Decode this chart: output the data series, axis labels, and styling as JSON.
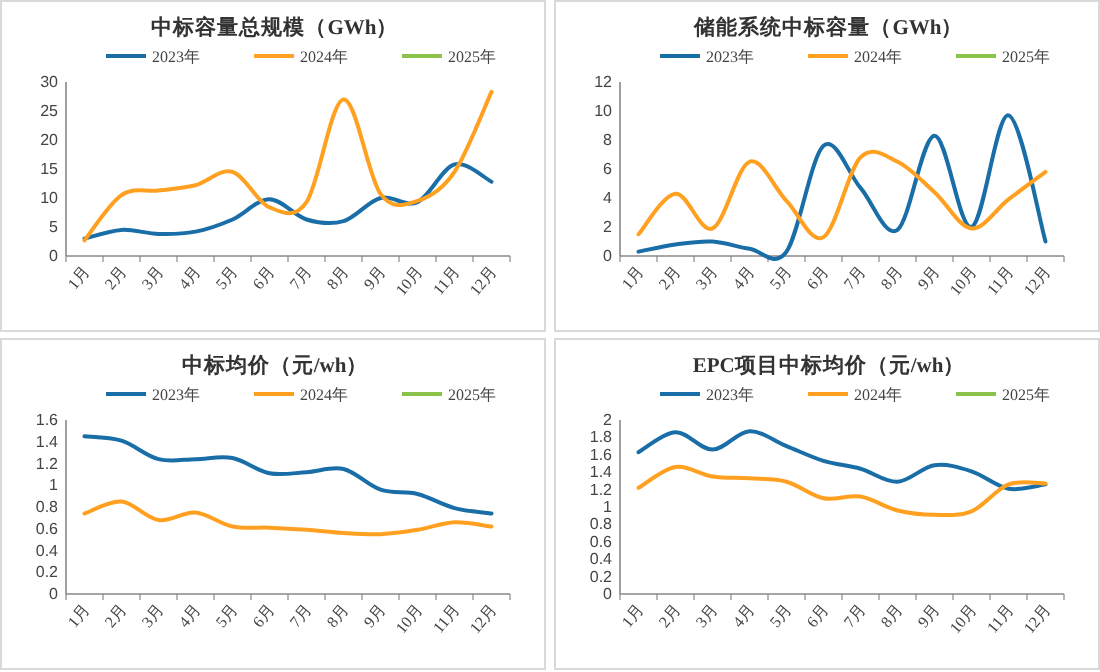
{
  "chart_data": [
    {
      "type": "line",
      "title": "中标容量总规模（GWh）",
      "categories": [
        "1月",
        "2月",
        "3月",
        "4月",
        "5月",
        "6月",
        "7月",
        "8月",
        "9月",
        "10月",
        "11月",
        "12月"
      ],
      "series": [
        {
          "name": "2023年",
          "color": "#1a6ea8",
          "values": [
            3,
            4.5,
            3.8,
            4.2,
            6.3,
            9.8,
            6.3,
            6,
            10,
            9.3,
            15.8,
            12.8
          ]
        },
        {
          "name": "2024年",
          "color": "#ffa020",
          "values": [
            2.7,
            10.5,
            11.3,
            12.2,
            14.5,
            8.4,
            9.3,
            27,
            10.7,
            9.5,
            14.5,
            28.3
          ]
        },
        {
          "name": "2025年",
          "color": "#8bc34a",
          "values": [
            null,
            null,
            null,
            null,
            null,
            null,
            null,
            null,
            null,
            null,
            null,
            null
          ]
        }
      ],
      "ylim": [
        0,
        30
      ],
      "yticks": [
        0,
        5,
        10,
        15,
        20,
        25,
        30
      ],
      "grid": false,
      "legend": "top",
      "marker": "none"
    },
    {
      "type": "line",
      "title": "储能系统中标容量（GWh）",
      "categories": [
        "1月",
        "2月",
        "3月",
        "4月",
        "5月",
        "6月",
        "7月",
        "8月",
        "9月",
        "10月",
        "11月",
        "12月"
      ],
      "series": [
        {
          "name": "2023年",
          "color": "#1a6ea8",
          "values": [
            0.3,
            0.8,
            1.0,
            0.5,
            0.3,
            7.6,
            4.7,
            1.8,
            8.3,
            2.0,
            9.7,
            1.0
          ]
        },
        {
          "name": "2024年",
          "color": "#ffa020",
          "values": [
            1.5,
            4.3,
            1.9,
            6.5,
            3.8,
            1.3,
            6.8,
            6.5,
            4.4,
            1.9,
            3.9,
            5.8
          ]
        },
        {
          "name": "2025年",
          "color": "#8bc34a",
          "values": [
            null,
            null,
            null,
            null,
            null,
            null,
            null,
            null,
            null,
            null,
            null,
            null
          ]
        }
      ],
      "ylim": [
        0,
        12
      ],
      "yticks": [
        0,
        2,
        4,
        6,
        8,
        10,
        12
      ],
      "grid": false,
      "legend": "top",
      "marker": "none"
    },
    {
      "type": "line",
      "title": "中标均价（元/wh）",
      "categories": [
        "1月",
        "2月",
        "3月",
        "4月",
        "5月",
        "6月",
        "7月",
        "8月",
        "9月",
        "10月",
        "11月",
        "12月"
      ],
      "series": [
        {
          "name": "2023年",
          "color": "#1a6ea8",
          "values": [
            1.45,
            1.41,
            1.24,
            1.24,
            1.25,
            1.11,
            1.12,
            1.15,
            0.96,
            0.92,
            0.79,
            0.74
          ]
        },
        {
          "name": "2024年",
          "color": "#ffa020",
          "values": [
            0.74,
            0.85,
            0.68,
            0.75,
            0.62,
            0.61,
            0.59,
            0.56,
            0.55,
            0.59,
            0.66,
            0.62
          ]
        },
        {
          "name": "2025年",
          "color": "#8bc34a",
          "values": [
            null,
            null,
            null,
            null,
            null,
            null,
            null,
            null,
            null,
            null,
            null,
            null
          ]
        }
      ],
      "ylim": [
        0,
        1.6
      ],
      "yticks": [
        0,
        0.2,
        0.4,
        0.6,
        0.8,
        1,
        1.2,
        1.4,
        1.6
      ],
      "grid": false,
      "legend": "top",
      "marker": "none"
    },
    {
      "type": "line",
      "title": "EPC项目中标均价（元/wh）",
      "categories": [
        "1月",
        "2月",
        "3月",
        "4月",
        "5月",
        "6月",
        "7月",
        "8月",
        "9月",
        "10月",
        "11月",
        "12月"
      ],
      "series": [
        {
          "name": "2023年",
          "color": "#1a6ea8",
          "values": [
            1.63,
            1.86,
            1.66,
            1.87,
            1.7,
            1.53,
            1.44,
            1.29,
            1.48,
            1.41,
            1.21,
            1.26
          ]
        },
        {
          "name": "2024年",
          "color": "#ffa020",
          "values": [
            1.22,
            1.46,
            1.35,
            1.33,
            1.29,
            1.1,
            1.12,
            0.96,
            0.91,
            0.95,
            1.26,
            1.27
          ]
        },
        {
          "name": "2025年",
          "color": "#8bc34a",
          "values": [
            null,
            null,
            null,
            null,
            null,
            null,
            null,
            null,
            null,
            null,
            null,
            null
          ]
        }
      ],
      "ylim": [
        0,
        2
      ],
      "yticks": [
        0,
        0.2,
        0.4,
        0.6,
        0.8,
        1,
        1.2,
        1.4,
        1.6,
        1.8,
        2
      ],
      "grid": false,
      "legend": "top",
      "marker": "none"
    }
  ]
}
